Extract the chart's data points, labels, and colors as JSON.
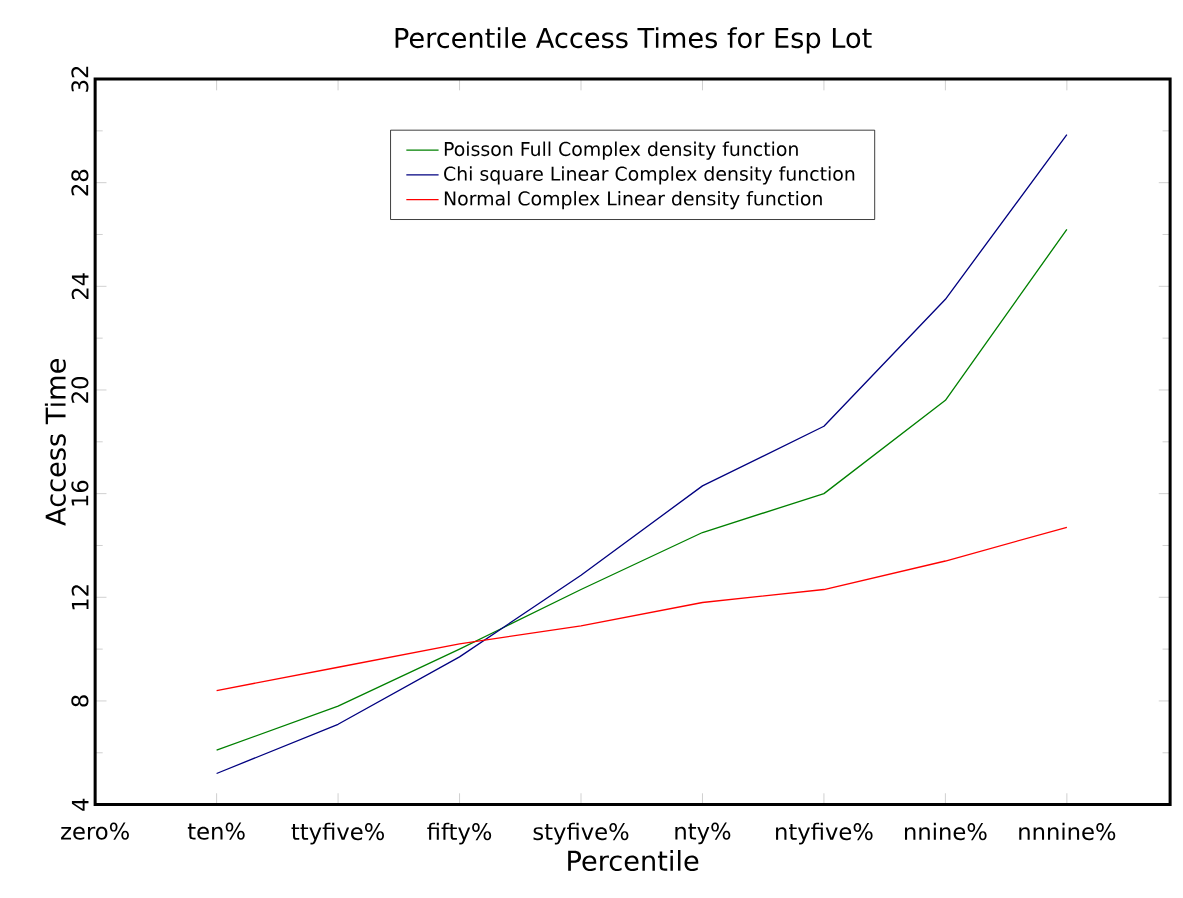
{
  "chart_data": {
    "type": "line",
    "title": "Percentile Access Times for Esp Lot",
    "xlabel": "Percentile",
    "ylabel": "Access Time",
    "categories": [
      "zero%",
      "ten%",
      "ttyfive%",
      "fifty%",
      "styfive%",
      "nty%",
      "ntyfive%",
      "nnine%",
      "nnnine%"
    ],
    "series": [
      {
        "name": "Poisson Full Complex density function",
        "color": "#008000",
        "values": [
          null,
          6.1,
          7.8,
          10.0,
          12.3,
          14.5,
          16.0,
          19.6,
          26.2
        ]
      },
      {
        "name": "Chi square Linear Complex density function",
        "color": "#000080",
        "values": [
          null,
          5.2,
          7.1,
          9.7,
          12.85,
          16.3,
          18.6,
          23.5,
          29.85
        ]
      },
      {
        "name": "Normal Complex Linear density function",
        "color": "#ff0000",
        "values": [
          null,
          8.4,
          9.3,
          10.2,
          10.9,
          11.8,
          12.3,
          13.4,
          14.7
        ]
      }
    ],
    "ylim": [
      4,
      32
    ],
    "yticks": [
      4,
      8,
      12,
      16,
      20,
      24,
      28,
      32
    ],
    "grid": false,
    "legend": "top",
    "marker": "none",
    "line_style": "solid"
  }
}
